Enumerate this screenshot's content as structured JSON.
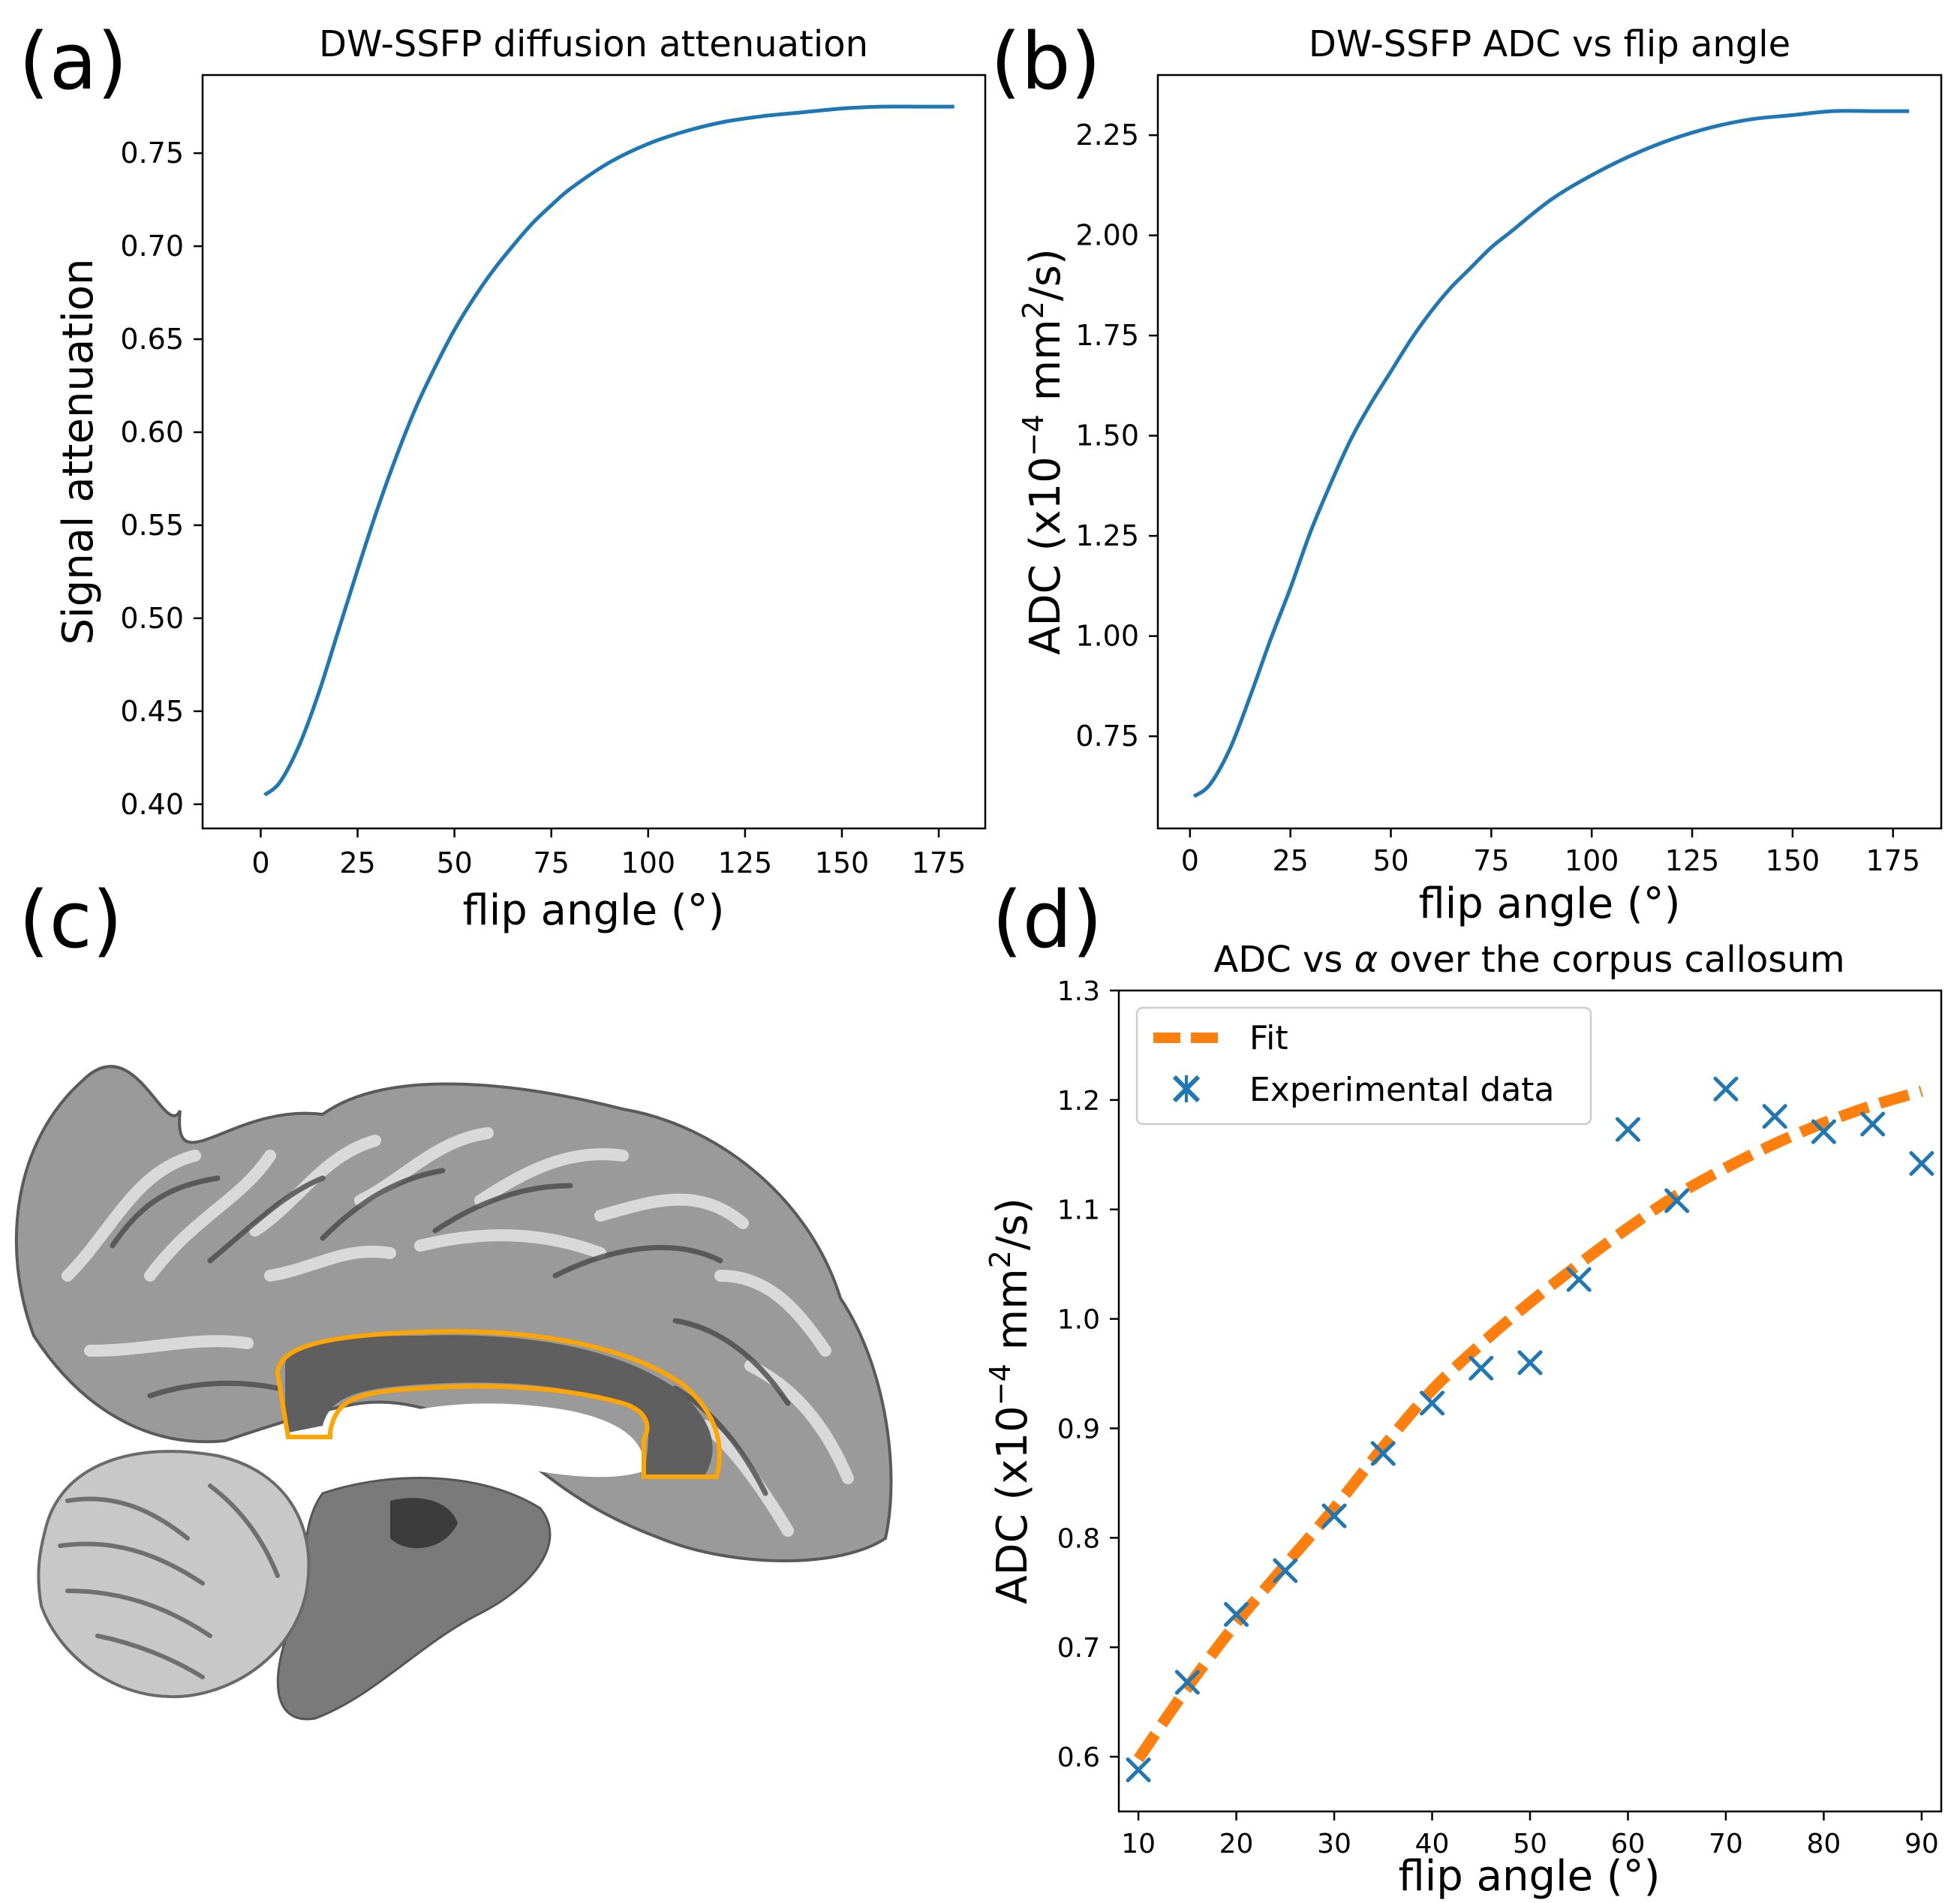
{
  "panel_labels": [
    "(a)",
    "(b)",
    "(c)",
    "(d)"
  ],
  "colors": {
    "curve": "#1f77b4",
    "fit": "#ff7f0e",
    "roi_outline": "#ffa500",
    "tissue_dark": "#606060",
    "tissue_light": "#bdbdbd"
  },
  "chart_data": [
    {
      "id": "a",
      "type": "line",
      "title": "DW-SSFP diffusion attenuation",
      "xlabel": "flip angle (°)",
      "ylabel": "Signal attenuation",
      "xlim": [
        -15,
        187
      ],
      "ylim": [
        0.387,
        0.792
      ],
      "xticks": [
        0,
        25,
        50,
        75,
        100,
        125,
        150,
        175
      ],
      "yticks": [
        0.4,
        0.45,
        0.5,
        0.55,
        0.6,
        0.65,
        0.7,
        0.75
      ],
      "xtick_labels": [
        "0",
        "25",
        "50",
        "75",
        "100",
        "125",
        "150",
        "175"
      ],
      "ytick_labels": [
        "0.40",
        "0.45",
        "0.50",
        "0.55",
        "0.60",
        "0.65",
        "0.70",
        "0.75"
      ],
      "series": [
        {
          "name": "DW-SSFP",
          "x": [
            1,
            5,
            10,
            15,
            20,
            25,
            30,
            35,
            40,
            45,
            50,
            55,
            60,
            65,
            70,
            75,
            80,
            90,
            100,
            110,
            120,
            130,
            140,
            150,
            160,
            170,
            179
          ],
          "y": [
            0.405,
            0.412,
            0.432,
            0.46,
            0.493,
            0.526,
            0.558,
            0.587,
            0.613,
            0.635,
            0.655,
            0.672,
            0.687,
            0.7,
            0.712,
            0.722,
            0.731,
            0.745,
            0.755,
            0.762,
            0.767,
            0.77,
            0.772,
            0.774,
            0.775,
            0.775,
            0.775
          ]
        }
      ]
    },
    {
      "id": "b",
      "type": "line",
      "title": "DW-SSFP ADC vs flip angle",
      "xlabel": "flip angle (°)",
      "ylabel": "ADC (x10−4 mm2/s)",
      "ylabel_parts": [
        "ADC (x10",
        "−4",
        " mm",
        "2",
        "/s)"
      ],
      "xlim": [
        -8,
        187
      ],
      "ylim": [
        0.52,
        2.4
      ],
      "xticks": [
        0,
        25,
        50,
        75,
        100,
        125,
        150,
        175
      ],
      "yticks": [
        0.75,
        1.0,
        1.25,
        1.5,
        1.75,
        2.0,
        2.25
      ],
      "xtick_labels": [
        "0",
        "25",
        "50",
        "75",
        "100",
        "125",
        "150",
        "175"
      ],
      "ytick_labels": [
        "0.75",
        "1.00",
        "1.25",
        "1.50",
        "1.75",
        "2.00",
        "2.25"
      ],
      "series": [
        {
          "name": "ADC",
          "x": [
            1,
            5,
            10,
            15,
            20,
            25,
            30,
            35,
            40,
            45,
            50,
            55,
            60,
            65,
            70,
            75,
            80,
            90,
            100,
            110,
            120,
            130,
            140,
            150,
            160,
            170,
            179
          ],
          "y": [
            0.6,
            0.63,
            0.72,
            0.85,
            0.99,
            1.12,
            1.26,
            1.38,
            1.49,
            1.58,
            1.66,
            1.74,
            1.81,
            1.87,
            1.92,
            1.97,
            2.01,
            2.09,
            2.15,
            2.2,
            2.24,
            2.27,
            2.29,
            2.3,
            2.31,
            2.31,
            2.31
          ]
        }
      ]
    },
    {
      "id": "d",
      "type": "scatter",
      "title": "ADC vs α over the corpus callosum",
      "title_parts": [
        "ADC vs ",
        "α",
        " over the corpus callosum"
      ],
      "xlabel": "flip angle (°)",
      "ylabel": "ADC (x10−4 mm2/s)",
      "ylabel_parts": [
        "ADC (x10",
        "−4",
        " mm",
        "2",
        "/s)"
      ],
      "xlim": [
        8,
        92
      ],
      "ylim": [
        0.55,
        1.3
      ],
      "xticks": [
        10,
        20,
        30,
        40,
        50,
        60,
        70,
        80,
        90
      ],
      "yticks": [
        0.6,
        0.7,
        0.8,
        0.9,
        1.0,
        1.1,
        1.2,
        1.3
      ],
      "xtick_labels": [
        "10",
        "20",
        "30",
        "40",
        "50",
        "60",
        "70",
        "80",
        "90"
      ],
      "ytick_labels": [
        "0.6",
        "0.7",
        "0.8",
        "0.9",
        "1.0",
        "1.1",
        "1.2",
        "1.3"
      ],
      "legend_position": "upper-left",
      "series": [
        {
          "name": "Fit",
          "style": "dashed-line",
          "x": [
            10,
            15,
            20,
            25,
            30,
            35,
            40,
            45,
            50,
            55,
            60,
            65,
            70,
            75,
            80,
            85,
            90
          ],
          "y": [
            0.598,
            0.663,
            0.722,
            0.775,
            0.827,
            0.883,
            0.935,
            0.977,
            1.015,
            1.05,
            1.083,
            1.113,
            1.138,
            1.16,
            1.179,
            1.195,
            1.208
          ]
        },
        {
          "name": "Experimental data",
          "style": "x-markers",
          "x": [
            10,
            15,
            20,
            25,
            30,
            35,
            40,
            45,
            50,
            55,
            60,
            65,
            70,
            75,
            80,
            85,
            90
          ],
          "y": [
            0.588,
            0.668,
            0.73,
            0.77,
            0.82,
            0.877,
            0.923,
            0.955,
            0.96,
            1.036,
            1.173,
            1.108,
            1.21,
            1.185,
            1.171,
            1.178,
            1.142
          ]
        }
      ]
    }
  ]
}
